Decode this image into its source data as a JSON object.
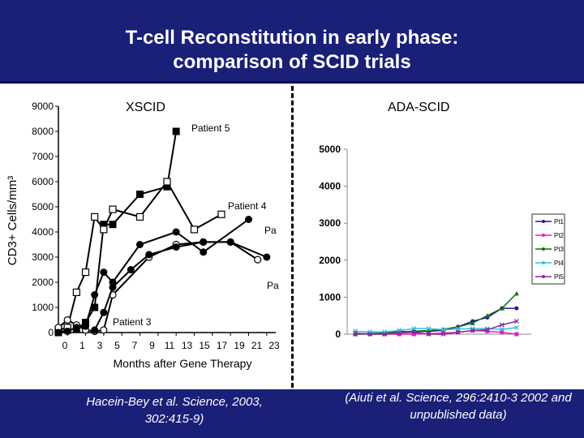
{
  "slide": {
    "title_line1": "T-cell Reconstitution in early phase:",
    "title_line2": "comparison of SCID trials",
    "left_label": "XSCID",
    "right_label": "ADA-SCID",
    "cite_left": "Hacein-Bey et al. Science, 2003, 302:415-9)",
    "cite_right": "(Aiuti et al. Science, 296:2410-3 2002 and  unpublished data)",
    "colors": {
      "header_bg": "#1a1f78",
      "text_light": "#ffffff"
    }
  },
  "chart_data": [
    {
      "type": "line",
      "title": "XSCID",
      "xlabel": "Months after Gene Therapy",
      "ylabel": "CD3+ Cells/mm³",
      "ylim": [
        0,
        9000
      ],
      "yticks": [
        "0",
        "1000",
        "2000",
        "3000",
        "4000",
        "5000",
        "6000",
        "7000",
        "8000",
        "9000"
      ],
      "xtick_labels": [
        "0",
        "1",
        "3",
        "5",
        "7",
        "9",
        "11",
        "13",
        "15",
        "17",
        "19",
        "21",
        "23"
      ],
      "series": [
        {
          "name": "Patient 5",
          "marker": "filled-square",
          "x": [
            0,
            1,
            2,
            3,
            4,
            5,
            6,
            9,
            12,
            13
          ],
          "y": [
            0,
            100,
            150,
            400,
            1000,
            4300,
            4300,
            5500,
            5800,
            8000
          ]
        },
        {
          "name": "Patient 4",
          "marker": "open-square",
          "x": [
            0,
            1,
            2,
            3,
            4,
            5,
            6,
            9,
            12,
            15,
            18
          ],
          "y": [
            100,
            200,
            1600,
            2400,
            4600,
            4100,
            4900,
            4600,
            6000,
            4100,
            4700
          ]
        },
        {
          "name": "Patient 3",
          "marker": "open-circle",
          "x": [
            0,
            1,
            2,
            3,
            4,
            5,
            6,
            10,
            13,
            16,
            19,
            22
          ],
          "y": [
            200,
            500,
            300,
            100,
            50,
            100,
            1500,
            3000,
            3500,
            3600,
            3600,
            2900
          ]
        },
        {
          "name": "Pa",
          "marker": "filled-circle",
          "x": [
            0,
            1,
            2,
            3,
            4,
            5,
            6,
            9,
            13,
            16,
            21
          ],
          "y": [
            0,
            50,
            200,
            250,
            1500,
            2400,
            2000,
            3500,
            4000,
            3200,
            4500
          ]
        },
        {
          "name": "Pa",
          "marker": "filled-circle",
          "x": [
            4,
            5,
            6,
            8,
            10,
            13,
            16,
            19,
            23
          ],
          "y": [
            100,
            800,
            1800,
            2500,
            3100,
            3400,
            3600,
            3600,
            3000
          ]
        }
      ],
      "annotations": [
        "Patient 5",
        "Patient 4",
        "Patient 3",
        "Pa",
        "Pa"
      ]
    },
    {
      "type": "line",
      "title": "ADA-SCID",
      "ylim": [
        0,
        5000
      ],
      "yticks": [
        "0",
        "1000",
        "2000",
        "3000",
        "4000",
        "5000"
      ],
      "legend_position": "right",
      "series": [
        {
          "name": "Pt1",
          "color": "#1a1a8c",
          "x": [
            0,
            1,
            2,
            3,
            4,
            5,
            6,
            7,
            8,
            9,
            10,
            11
          ],
          "y": [
            0,
            10,
            20,
            80,
            60,
            80,
            100,
            200,
            350,
            450,
            700,
            700
          ]
        },
        {
          "name": "Pt2",
          "color": "#e020c0",
          "x": [
            0,
            1,
            2,
            3,
            4,
            5,
            6,
            7,
            8,
            9,
            10,
            11
          ],
          "y": [
            0,
            0,
            0,
            0,
            0,
            10,
            30,
            50,
            100,
            80,
            50,
            0
          ]
        },
        {
          "name": "Pt3",
          "color": "#1a6b1a",
          "x": [
            0,
            1,
            2,
            3,
            4,
            5,
            6,
            7,
            8,
            9,
            10,
            11
          ],
          "y": [
            0,
            20,
            30,
            60,
            80,
            100,
            130,
            200,
            300,
            500,
            700,
            1100
          ]
        },
        {
          "name": "Pt4",
          "color": "#33c0e0",
          "x": [
            0,
            1,
            2,
            3,
            4,
            5,
            6,
            7,
            8,
            9,
            10,
            11
          ],
          "y": [
            80,
            60,
            60,
            100,
            150,
            150,
            120,
            140,
            150,
            150,
            130,
            180
          ]
        },
        {
          "name": "Pt5",
          "color": "#8a2a9a",
          "x": [
            0,
            1,
            2,
            3,
            4,
            5,
            6,
            7,
            8,
            9,
            10,
            11
          ],
          "y": [
            30,
            0,
            0,
            30,
            50,
            0,
            0,
            50,
            100,
            120,
            250,
            350
          ]
        }
      ]
    }
  ]
}
